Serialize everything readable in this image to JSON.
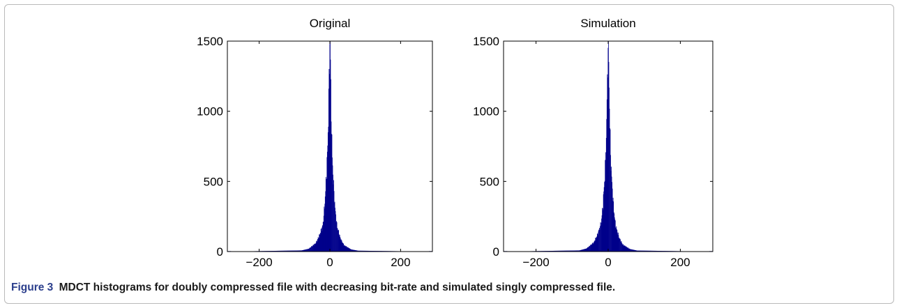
{
  "chart_data": [
    {
      "type": "bar",
      "title": "Original",
      "xlim": [
        -290,
        290
      ],
      "ylim": [
        0,
        1500
      ],
      "xticks": [
        -200,
        0,
        200
      ],
      "yticks": [
        0,
        500,
        1000,
        1500
      ],
      "xtick_labels": [
        "−200",
        "0",
        "200"
      ],
      "ytick_labels": [
        "0",
        "500",
        "1000",
        "1500"
      ],
      "color": "#00008b",
      "x": [
        -80,
        -60,
        -40,
        -30,
        -20,
        -15,
        -10,
        -6,
        -4,
        -2,
        -1,
        0,
        1,
        2,
        4,
        6,
        10,
        15,
        20,
        30,
        40,
        60,
        80
      ],
      "values": [
        8,
        20,
        60,
        115,
        190,
        330,
        550,
        780,
        1050,
        1250,
        1500,
        1500,
        1500,
        1200,
        950,
        700,
        480,
        290,
        180,
        90,
        45,
        15,
        6
      ]
    },
    {
      "type": "bar",
      "title": "Simulation",
      "xlim": [
        -290,
        290
      ],
      "ylim": [
        0,
        1500
      ],
      "xticks": [
        -200,
        0,
        200
      ],
      "yticks": [
        0,
        500,
        1000,
        1500
      ],
      "xtick_labels": [
        "−200",
        "0",
        "200"
      ],
      "ytick_labels": [
        "0",
        "500",
        "1000",
        "1500"
      ],
      "color": "#00008b",
      "x": [
        -80,
        -60,
        -40,
        -30,
        -20,
        -15,
        -10,
        -6,
        -4,
        -2,
        -1,
        0,
        1,
        2,
        4,
        6,
        10,
        15,
        20,
        30,
        40,
        60,
        80
      ],
      "values": [
        8,
        22,
        65,
        120,
        200,
        320,
        520,
        750,
        1000,
        1250,
        1500,
        1500,
        1500,
        1250,
        980,
        720,
        500,
        310,
        190,
        100,
        50,
        18,
        7
      ]
    }
  ],
  "caption": {
    "label": "Figure 3",
    "text": "MDCT histograms for doubly compressed file with decreasing bit-rate and simulated singly compressed file."
  }
}
